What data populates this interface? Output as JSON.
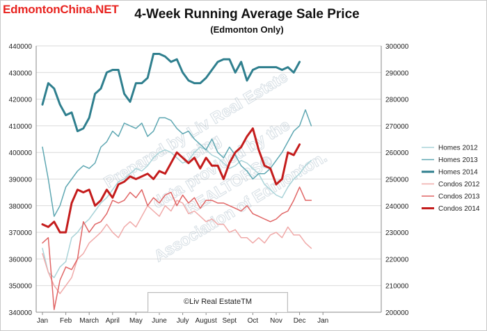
{
  "brand": "EdmontonChina.NET",
  "credit": "©Liv Real EstateTM",
  "watermark": [
    "Prepared by Liv Real Estate",
    "using",
    "data provided by the",
    "REALTORS®",
    "Association of Edmonton."
  ],
  "chart_data": {
    "type": "line",
    "title": "4-Week Running Average Sale Price",
    "subtitle": "(Edmonton Only)",
    "x_ticks": [
      "Jan",
      "Feb",
      "March",
      "April",
      "May",
      "June",
      "July",
      "August",
      "Sept",
      "Oct",
      "Nov",
      "Dec",
      "Jan"
    ],
    "left_axis": {
      "ylim": [
        340000,
        440000
      ],
      "ticks": [
        "340000",
        "350000",
        "360000",
        "370000",
        "380000",
        "390000",
        "400000",
        "410000",
        "420000",
        "430000",
        "440000"
      ]
    },
    "right_axis": {
      "ylim": [
        200000,
        300000
      ],
      "ticks": [
        "200000",
        "210000",
        "220000",
        "230000",
        "240000",
        "250000",
        "260000",
        "270000",
        "280000",
        "290000",
        "300000"
      ]
    },
    "grid": true,
    "legend_position": "right",
    "series": [
      {
        "name": "Homes 2012",
        "axis": "left",
        "color": "#a9d3d8",
        "width": 1.5,
        "x": [
          0,
          0.25,
          0.5,
          0.75,
          1,
          1.25,
          1.5,
          1.75,
          2,
          2.25,
          2.5,
          2.75,
          3,
          3.25,
          3.5,
          3.75,
          4,
          4.25,
          4.5,
          4.75,
          5,
          5.25,
          5.5,
          5.75,
          6,
          6.25,
          6.5,
          6.75,
          7,
          7.25,
          7.5,
          7.75,
          8,
          8.25,
          8.5,
          8.75,
          9,
          9.25,
          9.5,
          9.75,
          10,
          10.25,
          10.5,
          10.75,
          11,
          11.25,
          11.5
        ],
        "values": [
          364000,
          355000,
          353000,
          357000,
          359000,
          368000,
          370000,
          373000,
          375000,
          378000,
          381000,
          383000,
          386000,
          389000,
          390000,
          392000,
          394000,
          393000,
          395000,
          398000,
          400000,
          401000,
          400000,
          398000,
          396000,
          397000,
          400000,
          402000,
          401000,
          399000,
          398000,
          396000,
          394000,
          395000,
          397000,
          396000,
          394000,
          392000,
          388000,
          386000,
          384000,
          383000,
          387000,
          390000,
          392000,
          395000,
          397000
        ]
      },
      {
        "name": "Homes 2013",
        "axis": "left",
        "color": "#5ea7b2",
        "width": 1.5,
        "x": [
          0,
          0.25,
          0.5,
          0.75,
          1,
          1.25,
          1.5,
          1.75,
          2,
          2.25,
          2.5,
          2.75,
          3,
          3.25,
          3.5,
          3.75,
          4,
          4.25,
          4.5,
          4.75,
          5,
          5.25,
          5.5,
          5.75,
          6,
          6.25,
          6.5,
          6.75,
          7,
          7.25,
          7.5,
          7.75,
          8,
          8.25,
          8.5,
          8.75,
          9,
          9.25,
          9.5,
          9.75,
          10,
          10.25,
          10.5,
          10.75,
          11,
          11.25,
          11.5
        ],
        "values": [
          402000,
          390000,
          376000,
          380000,
          387000,
          390000,
          393000,
          395000,
          394000,
          396000,
          402000,
          404000,
          408000,
          406000,
          411000,
          410000,
          409000,
          411000,
          406000,
          408000,
          413000,
          413000,
          412000,
          409000,
          407000,
          408000,
          405000,
          403000,
          401000,
          405000,
          400000,
          398000,
          402000,
          399000,
          395000,
          393000,
          390000,
          392000,
          392000,
          394000,
          397000,
          400000,
          404000,
          408000,
          410000,
          416000,
          410000
        ]
      },
      {
        "name": "Homes 2014",
        "axis": "left",
        "color": "#2f7f8e",
        "width": 3,
        "x": [
          0,
          0.25,
          0.5,
          0.75,
          1,
          1.25,
          1.5,
          1.75,
          2,
          2.25,
          2.5,
          2.75,
          3,
          3.25,
          3.5,
          3.75,
          4,
          4.25,
          4.5,
          4.75,
          5,
          5.25,
          5.5,
          5.75,
          6,
          6.25,
          6.5,
          6.75,
          7,
          7.25,
          7.5,
          7.75,
          8,
          8.25,
          8.5,
          8.75,
          9,
          9.25,
          9.5,
          9.75,
          10,
          10.25,
          10.5,
          10.75,
          11
        ],
        "values": [
          418000,
          426000,
          424000,
          418000,
          414000,
          415000,
          408000,
          409000,
          413000,
          422000,
          424000,
          430000,
          431000,
          431000,
          422000,
          419000,
          426000,
          426000,
          428000,
          437000,
          437000,
          436000,
          434000,
          435000,
          430000,
          427000,
          426000,
          426000,
          428000,
          431000,
          434000,
          435000,
          435000,
          430000,
          434000,
          427000,
          431000,
          432000,
          432000,
          432000,
          432000,
          431000,
          432000,
          430000,
          434000
        ]
      },
      {
        "name": "Condos 2012",
        "axis": "right",
        "color": "#f0a9a8",
        "width": 1.5,
        "x": [
          0,
          0.25,
          0.5,
          0.75,
          1,
          1.25,
          1.5,
          1.75,
          2,
          2.25,
          2.5,
          2.75,
          3,
          3.25,
          3.5,
          3.75,
          4,
          4.25,
          4.5,
          4.75,
          5,
          5.25,
          5.5,
          5.75,
          6,
          6.25,
          6.5,
          6.75,
          7,
          7.25,
          7.5,
          7.75,
          8,
          8.25,
          8.5,
          8.75,
          9,
          9.25,
          9.5,
          9.75,
          10,
          10.25,
          10.5,
          10.75,
          11,
          11.25,
          11.5
        ],
        "values": [
          222000,
          215000,
          210000,
          207000,
          210000,
          213000,
          220000,
          222000,
          226000,
          228000,
          230000,
          233000,
          230000,
          228000,
          232000,
          234000,
          232000,
          236000,
          240000,
          238000,
          236000,
          240000,
          238000,
          242000,
          241000,
          237000,
          238000,
          236000,
          234000,
          235000,
          233000,
          233000,
          230000,
          231000,
          228000,
          228000,
          226000,
          228000,
          226000,
          229000,
          230000,
          228000,
          232000,
          229000,
          229000,
          226000,
          224000
        ]
      },
      {
        "name": "Condos 2013",
        "axis": "right",
        "color": "#e06464",
        "width": 1.5,
        "x": [
          0,
          0.25,
          0.5,
          0.75,
          1,
          1.25,
          1.5,
          1.75,
          2,
          2.25,
          2.5,
          2.75,
          3,
          3.25,
          3.5,
          3.75,
          4,
          4.25,
          4.5,
          4.75,
          5,
          5.25,
          5.5,
          5.75,
          6,
          6.25,
          6.5,
          6.75,
          7,
          7.25,
          7.5,
          7.75,
          8,
          8.25,
          8.5,
          8.75,
          9,
          9.25,
          9.5,
          9.75,
          10,
          10.25,
          10.5,
          10.75,
          11,
          11.25,
          11.5
        ],
        "values": [
          226000,
          228000,
          201000,
          212000,
          217000,
          216000,
          220000,
          234000,
          230000,
          233000,
          234000,
          237000,
          242000,
          241000,
          242000,
          245000,
          243000,
          246000,
          240000,
          243000,
          241000,
          244000,
          245000,
          240000,
          244000,
          241000,
          243000,
          239000,
          242000,
          242000,
          241000,
          241000,
          240000,
          239000,
          238000,
          240000,
          237000,
          236000,
          235000,
          234000,
          235000,
          237000,
          238000,
          242000,
          247000,
          242000,
          242000
        ]
      },
      {
        "name": "Condos 2014",
        "axis": "right",
        "color": "#c41c1c",
        "width": 3,
        "x": [
          0,
          0.25,
          0.5,
          0.75,
          1,
          1.25,
          1.5,
          1.75,
          2,
          2.25,
          2.5,
          2.75,
          3,
          3.25,
          3.5,
          3.75,
          4,
          4.25,
          4.5,
          4.75,
          5,
          5.25,
          5.5,
          5.75,
          6,
          6.25,
          6.5,
          6.75,
          7,
          7.25,
          7.5,
          7.75,
          8,
          8.25,
          8.5,
          8.75,
          9,
          9.25,
          9.5,
          9.75,
          10,
          10.25,
          10.5,
          10.75,
          11
        ],
        "values": [
          233000,
          232000,
          234000,
          230000,
          230000,
          241000,
          246000,
          245000,
          246000,
          240000,
          242000,
          246000,
          243000,
          248000,
          249000,
          251000,
          250000,
          251000,
          252000,
          250000,
          253000,
          252000,
          256000,
          260000,
          258000,
          256000,
          258000,
          254000,
          258000,
          255000,
          255000,
          250000,
          256000,
          260000,
          262000,
          266000,
          269000,
          261000,
          255000,
          254000,
          248000,
          250000,
          260000,
          259000,
          263000
        ]
      }
    ]
  }
}
